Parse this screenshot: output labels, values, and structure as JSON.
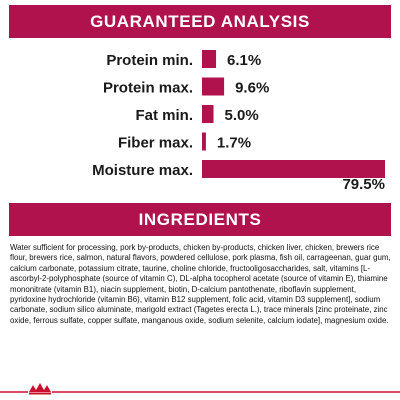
{
  "header": {
    "title": "GUARANTEED ANALYSIS"
  },
  "chart_data": {
    "type": "bar",
    "orientation": "horizontal",
    "categories": [
      "Protein min.",
      "Protein max.",
      "Fat min.",
      "Fiber max.",
      "Moisture max."
    ],
    "values": [
      6.1,
      9.6,
      5.0,
      1.7,
      79.5
    ],
    "value_labels": [
      "6.1%",
      "9.6%",
      "5.0%",
      "1.7%",
      "79.5%"
    ],
    "unit": "%",
    "xlim": [
      0,
      79.5
    ],
    "grid": false,
    "legend": "none",
    "bar_color": "#b0124d"
  },
  "ingredients": {
    "title": "INGREDIENTS",
    "text": "Water sufficient for processing, pork by-products, chicken by-products, chicken liver, chicken, brewers rice flour, brewers rice, salmon, natural flavors, powdered cellulose, pork plasma, fish oil, carrageenan, guar gum, calcium carbonate, potassium citrate, taurine, choline chloride, fructooligosaccharides, salt, vitamins [L-ascorbyl-2-polyphosphate (source of vitamin C), DL-alpha tocopherol acetate (source of vitamin E), thiamine mononitrate (vitamin B1), niacin supplement, biotin, D-calcium pantothenate, riboflavin supplement, pyridoxine hydrochloride (vitamin B6), vitamin B12 supplement, folic acid, vitamin D3 supplement], sodium carbonate, sodium silico aluminate, marigold extract (Tagetes erecta L.), trace minerals [zinc proteinate, zinc oxide, ferrous sulfate, copper sulfate, manganous oxide, sodium selenite, calcium iodate], magnesium oxide."
  },
  "colors": {
    "accent": "#b0124d",
    "text": "#1a1a1a"
  },
  "footer": {
    "logo_icon": "royal-canin-crown-icon"
  }
}
